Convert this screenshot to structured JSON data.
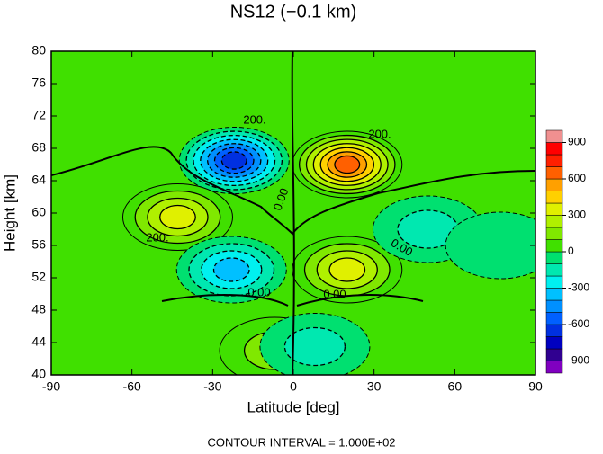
{
  "chart_data": {
    "type": "contour",
    "title": "NS12 (−0.1 km)",
    "x_label": "Latitude [deg]",
    "y_label": "Height [km]",
    "footer": "CONTOUR INTERVAL = 1.000E+02",
    "xlim": [
      -90,
      90
    ],
    "xticks": [
      -90,
      -60,
      -30,
      0,
      30,
      60,
      90
    ],
    "ylim": [
      40,
      80
    ],
    "yticks": [
      40,
      44,
      48,
      52,
      56,
      60,
      64,
      68,
      72,
      76,
      80
    ],
    "colorbar_lim": [
      -1000,
      1000
    ],
    "colorbar_ticks": [
      -900,
      -600,
      -300,
      0,
      300,
      600,
      900
    ],
    "colors": [
      "#8000c0",
      "#300090",
      "#0000c0",
      "#0030e0",
      "#0060ff",
      "#0090ff",
      "#00c0ff",
      "#00f0f0",
      "#00e8b0",
      "#00e070",
      "#40e000",
      "#80e800",
      "#b0f000",
      "#e0f000",
      "#ffd000",
      "#ffa000",
      "#ff6000",
      "#ff2000",
      "#ff0000",
      "#f09090"
    ],
    "extrema": [
      {
        "lat": -22,
        "height": 66.5,
        "value": -700
      },
      {
        "lat": 20,
        "height": 66,
        "value": 650
      },
      {
        "lat": -43,
        "height": 59.5,
        "value": 400
      },
      {
        "lat": 20,
        "height": 53,
        "value": 400
      },
      {
        "lat": -23,
        "height": 53,
        "value": -400
      },
      {
        "lat": -7,
        "height": 43,
        "value": 200
      },
      {
        "lat": 8,
        "height": 43.5,
        "value": -200
      },
      {
        "lat": 50,
        "height": 58,
        "value": -200
      },
      {
        "lat": 77,
        "height": 56,
        "value": -100
      }
    ],
    "contour_labels": [
      "200.",
      "200.",
      "200.",
      "0.00",
      "0.00",
      "0.00",
      "0.00"
    ]
  }
}
